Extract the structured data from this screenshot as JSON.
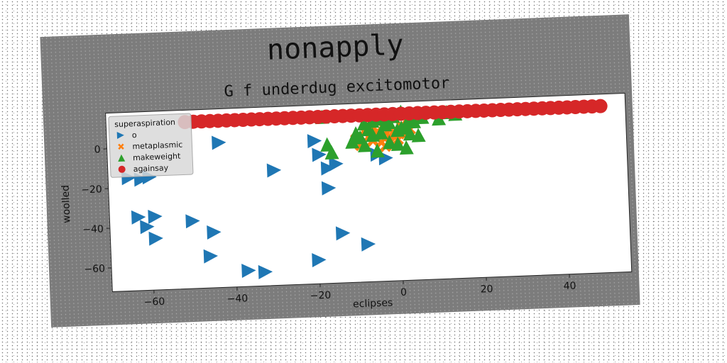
{
  "chart_data": {
    "type": "scatter",
    "title": "nonapply",
    "subtitle": "G f underdug excitomotor",
    "xlabel": "eclipses",
    "ylabel": "woolled",
    "xlim": [
      -70,
      55
    ],
    "ylim": [
      -72,
      18
    ],
    "xticks": [
      -60,
      -40,
      -20,
      0,
      20,
      40
    ],
    "xtick_labels": [
      "−60",
      "−40",
      "−20",
      "0",
      "20",
      "40"
    ],
    "yticks": [
      -60,
      -40,
      -20,
      0
    ],
    "ytick_labels": [
      "−60",
      "−40",
      "−20",
      "0"
    ],
    "grid": false,
    "legend": {
      "title": "superaspiration",
      "position": "top-left"
    },
    "series": [
      {
        "name": "o",
        "marker": "triangle-right",
        "color": "#1f77b4",
        "points": [
          [
            -65,
            -15
          ],
          [
            -62,
            -16
          ],
          [
            -60,
            -15
          ],
          [
            -63,
            -35
          ],
          [
            -59,
            -35
          ],
          [
            -61,
            -40
          ],
          [
            -59,
            -46
          ],
          [
            -50,
            -38
          ],
          [
            -46,
            -56
          ],
          [
            -45,
            -44
          ],
          [
            -43,
            1
          ],
          [
            -37,
            -64
          ],
          [
            -33,
            -65
          ],
          [
            -30,
            -14
          ],
          [
            -20,
            -60
          ],
          [
            -20,
            0
          ],
          [
            -19,
            -7
          ],
          [
            -17,
            -14
          ],
          [
            -17,
            -24
          ],
          [
            -15,
            -12
          ],
          [
            -14,
            -47
          ],
          [
            -8,
            -53
          ],
          [
            -5,
            -8
          ],
          [
            -3,
            -10
          ]
        ]
      },
      {
        "name": "metaplasmic",
        "marker": "x",
        "color": "#ff7f0e",
        "points": [
          [
            -10,
            0
          ],
          [
            -9,
            -3
          ],
          [
            -8,
            4
          ],
          [
            -7,
            1
          ],
          [
            -6,
            -1
          ],
          [
            -5,
            3
          ],
          [
            -4,
            -2
          ],
          [
            -3,
            5
          ],
          [
            -2,
            1
          ],
          [
            -1,
            3
          ],
          [
            0,
            -1
          ],
          [
            1,
            6
          ],
          [
            2,
            2
          ],
          [
            3,
            4
          ],
          [
            -6,
            6
          ],
          [
            -3,
            -4
          ]
        ]
      },
      {
        "name": "makeweight",
        "marker": "triangle-up",
        "color": "#2ca02c",
        "points": [
          [
            -18,
            12
          ],
          [
            -17,
            -2
          ],
          [
            -16,
            -6
          ],
          [
            -9,
            1
          ],
          [
            -8,
            -3
          ],
          [
            -7,
            5
          ],
          [
            -6,
            9
          ],
          [
            -5,
            -6
          ],
          [
            -4,
            3
          ],
          [
            -3,
            7
          ],
          [
            -2,
            -2
          ],
          [
            -1,
            11
          ],
          [
            0,
            4
          ],
          [
            1,
            13
          ],
          [
            2,
            -5
          ],
          [
            3,
            2
          ],
          [
            4,
            8
          ],
          [
            5,
            1
          ],
          [
            6,
            10
          ],
          [
            -8,
            8
          ],
          [
            -6,
            2
          ],
          [
            -2,
            8
          ],
          [
            0,
            -3
          ],
          [
            1,
            5
          ],
          [
            3,
            9
          ],
          [
            -4,
            10
          ],
          [
            2,
            6
          ],
          [
            10,
            9
          ],
          [
            12,
            12
          ],
          [
            14,
            11
          ],
          [
            -10,
            3
          ],
          [
            -11,
            -1
          ]
        ]
      },
      {
        "name": "againsay",
        "marker": "circle",
        "color": "#d62728",
        "points": [
          [
            -51,
            12
          ],
          [
            -49,
            12
          ],
          [
            -47,
            12
          ],
          [
            -45,
            12
          ],
          [
            -43,
            12
          ],
          [
            -41,
            12
          ],
          [
            -39,
            12
          ],
          [
            -37,
            12
          ],
          [
            -35,
            12
          ],
          [
            -33,
            12
          ],
          [
            -31,
            12
          ],
          [
            -29,
            12
          ],
          [
            -27,
            12
          ],
          [
            -25,
            12
          ],
          [
            -23,
            12
          ],
          [
            -21,
            12
          ],
          [
            -19,
            12
          ],
          [
            -17,
            12
          ],
          [
            -15,
            12
          ],
          [
            -13,
            12
          ],
          [
            -11,
            12
          ],
          [
            -9,
            12
          ],
          [
            -7,
            12
          ],
          [
            -5,
            12
          ],
          [
            -3,
            12
          ],
          [
            -1,
            12
          ],
          [
            1,
            12
          ],
          [
            3,
            12
          ],
          [
            5,
            12
          ],
          [
            7,
            12
          ],
          [
            9,
            12
          ],
          [
            11,
            12
          ],
          [
            13,
            12
          ],
          [
            15,
            12
          ],
          [
            17,
            12
          ],
          [
            19,
            12
          ],
          [
            21,
            12
          ],
          [
            23,
            12
          ],
          [
            25,
            12
          ],
          [
            27,
            12
          ],
          [
            29,
            12
          ],
          [
            31,
            12
          ],
          [
            33,
            12
          ],
          [
            35,
            12
          ],
          [
            37,
            12
          ],
          [
            39,
            12
          ],
          [
            41,
            12
          ],
          [
            43,
            12
          ],
          [
            45,
            12
          ],
          [
            47,
            12
          ],
          [
            49,
            12
          ]
        ]
      }
    ]
  }
}
